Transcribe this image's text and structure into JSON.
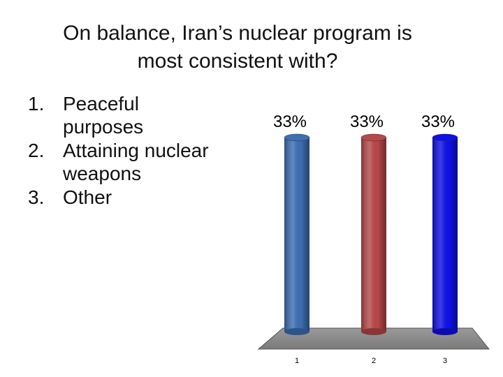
{
  "slide": {
    "title_line1": "On balance, Iran’s nuclear program is",
    "title_line2": "most consistent with?"
  },
  "options": [
    {
      "number": "1.",
      "text_line1": "Peaceful",
      "text_line2": "purposes"
    },
    {
      "number": "2.",
      "text_line1": "Attaining nuclear",
      "text_line2": "weapons"
    },
    {
      "number": "3.",
      "text_line1": "Other",
      "text_line2": ""
    }
  ],
  "chart_data": {
    "type": "bar",
    "style": "3d-cylinder",
    "categories": [
      "1",
      "2",
      "3"
    ],
    "values": [
      33,
      33,
      33
    ],
    "data_labels": [
      "33%",
      "33%",
      "33%"
    ],
    "ylim": [
      0,
      33
    ],
    "colors": [
      "#3e6fb4",
      "#b8484a",
      "#1010e8"
    ],
    "grid": false,
    "legend": "none"
  }
}
